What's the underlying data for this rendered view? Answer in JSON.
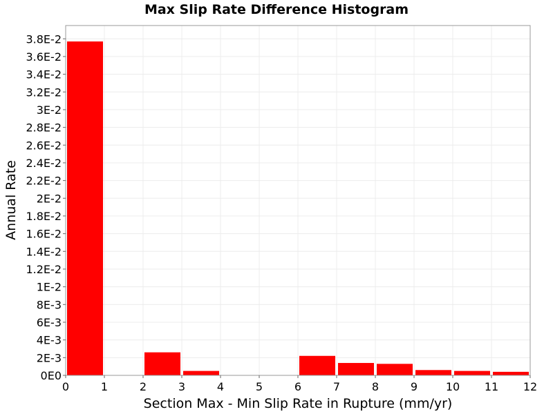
{
  "chart_data": {
    "type": "bar",
    "title": "Max Slip Rate Difference Histogram",
    "xlabel": "Section Max - Min Slip Rate in Rupture (mm/yr)",
    "ylabel": "Annual Rate",
    "xlim": [
      0,
      12
    ],
    "ylim": [
      0,
      0.0395
    ],
    "grid": true,
    "bar_color": "#ff0000",
    "x_ticks": [
      {
        "value": 0,
        "label": "0"
      },
      {
        "value": 1,
        "label": "1"
      },
      {
        "value": 2,
        "label": "2"
      },
      {
        "value": 3,
        "label": "3"
      },
      {
        "value": 4,
        "label": "4"
      },
      {
        "value": 5,
        "label": "5"
      },
      {
        "value": 6,
        "label": "6"
      },
      {
        "value": 7,
        "label": "7"
      },
      {
        "value": 8,
        "label": "8"
      },
      {
        "value": 9,
        "label": "9"
      },
      {
        "value": 10,
        "label": "10"
      },
      {
        "value": 11,
        "label": "11"
      },
      {
        "value": 12,
        "label": "12"
      }
    ],
    "y_ticks": [
      {
        "value": 0,
        "label": "0E0"
      },
      {
        "value": 0.002,
        "label": "2E-3"
      },
      {
        "value": 0.004,
        "label": "4E-3"
      },
      {
        "value": 0.006,
        "label": "6E-3"
      },
      {
        "value": 0.008,
        "label": "8E-3"
      },
      {
        "value": 0.01,
        "label": "1E-2"
      },
      {
        "value": 0.012,
        "label": "1.2E-2"
      },
      {
        "value": 0.014,
        "label": "1.4E-2"
      },
      {
        "value": 0.016,
        "label": "1.6E-2"
      },
      {
        "value": 0.018,
        "label": "1.8E-2"
      },
      {
        "value": 0.02,
        "label": "2E-2"
      },
      {
        "value": 0.022,
        "label": "2.2E-2"
      },
      {
        "value": 0.024,
        "label": "2.4E-2"
      },
      {
        "value": 0.026,
        "label": "2.6E-2"
      },
      {
        "value": 0.028,
        "label": "2.8E-2"
      },
      {
        "value": 0.03,
        "label": "3E-2"
      },
      {
        "value": 0.032,
        "label": "3.2E-2"
      },
      {
        "value": 0.034,
        "label": "3.4E-2"
      },
      {
        "value": 0.036,
        "label": "3.6E-2"
      },
      {
        "value": 0.038,
        "label": "3.8E-2"
      }
    ],
    "bin_width": 1,
    "bins": [
      {
        "x": 0.5,
        "value": 0.0377
      },
      {
        "x": 1.5,
        "value": 0
      },
      {
        "x": 2.5,
        "value": 0.0026
      },
      {
        "x": 3.5,
        "value": 0.0005
      },
      {
        "x": 4.5,
        "value": 0
      },
      {
        "x": 5.5,
        "value": 0
      },
      {
        "x": 6.5,
        "value": 0.0022
      },
      {
        "x": 7.5,
        "value": 0.0014
      },
      {
        "x": 8.5,
        "value": 0.0013
      },
      {
        "x": 9.5,
        "value": 0.0006
      },
      {
        "x": 10.5,
        "value": 0.0005
      },
      {
        "x": 11.5,
        "value": 0.0004
      }
    ]
  }
}
